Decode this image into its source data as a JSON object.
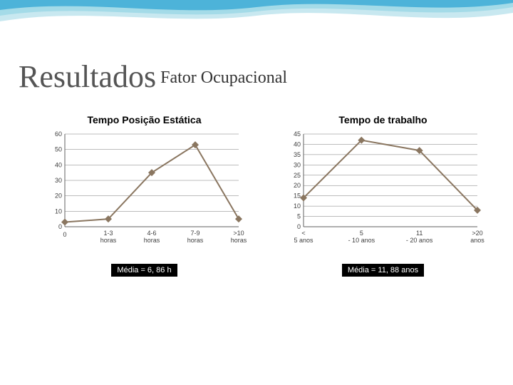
{
  "header": {
    "wave_colors": [
      "#4db3d9",
      "#a4dbe8",
      "#c8e8f0"
    ]
  },
  "title": {
    "main": "Resultados",
    "sub": "Fator Ocupacional",
    "main_fontsize": 44,
    "sub_fontsize": 24,
    "main_color": "#555555",
    "sub_color": "#333333"
  },
  "chart_left": {
    "type": "line",
    "title": "Tempo Posição Estática",
    "title_fontsize": 14,
    "title_fontweight": 700,
    "categories": [
      "0",
      "1-3 horas",
      "4-6 horas",
      "7-9 horas",
      ">10 horas"
    ],
    "values": [
      3,
      5,
      35,
      53,
      5
    ],
    "ylim": [
      0,
      60
    ],
    "ytick_step": 10,
    "yticks": [
      "0",
      "10",
      "20",
      "30",
      "40",
      "50",
      "60"
    ],
    "line_color": "#8a7660",
    "marker_style": "diamond",
    "marker_size": 5,
    "line_width": 2,
    "grid_color": "#7a7a7a",
    "grid_width": 0.5,
    "background_color": "#ffffff",
    "axis_color": "#606060",
    "media_label": "Média = 6, 86 h"
  },
  "chart_right": {
    "type": "line",
    "title": "Tempo de trabalho",
    "title_fontsize": 14,
    "title_fontweight": 700,
    "categories": [
      "< 5 anos",
      "5 - 10 anos",
      "11 - 20 anos",
      ">20 anos"
    ],
    "values": [
      14,
      42,
      37,
      8
    ],
    "ylim": [
      0,
      45
    ],
    "ytick_step": 5,
    "yticks": [
      "0",
      "5",
      "10",
      "15",
      "20",
      "25",
      "30",
      "35",
      "40",
      "45"
    ],
    "line_color": "#8a7660",
    "marker_style": "diamond",
    "marker_size": 5,
    "line_width": 2,
    "grid_color": "#7a7a7a",
    "grid_width": 0.5,
    "background_color": "#ffffff",
    "axis_color": "#606060",
    "media_label": "Média = 11, 88 anos"
  },
  "media_badge_style": {
    "background": "#000000",
    "color": "#ffffff",
    "fontsize": 11
  }
}
